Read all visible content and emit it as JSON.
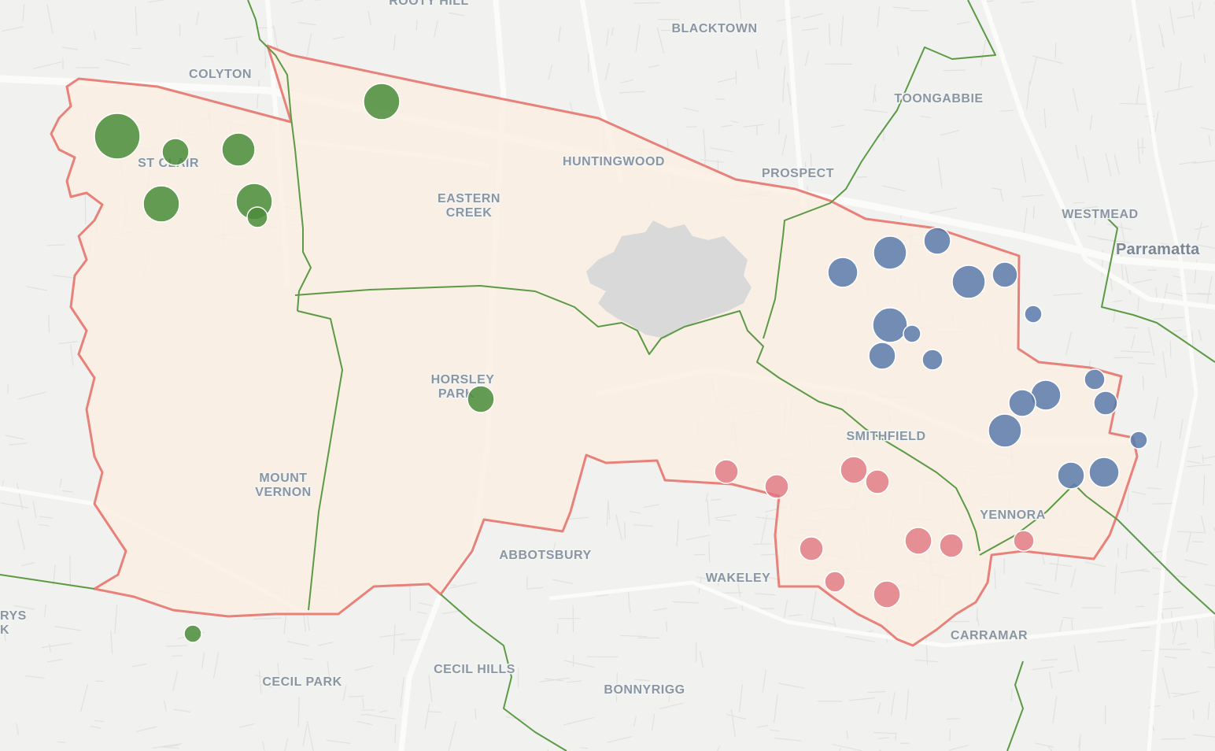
{
  "map": {
    "places": [
      {
        "name": "ROOTY HILL",
        "type": "suburb"
      },
      {
        "name": "BLACKTOWN",
        "type": "suburb"
      },
      {
        "name": "COLYTON",
        "type": "suburb"
      },
      {
        "name": "TOONGABBIE",
        "type": "suburb"
      },
      {
        "name": "ST CLAIR",
        "type": "suburb"
      },
      {
        "name": "HUNTINGWOOD",
        "type": "suburb"
      },
      {
        "name": "PROSPECT",
        "type": "suburb"
      },
      {
        "name": "EASTERN",
        "type": "suburb"
      },
      {
        "name": "CREEK",
        "type": "suburb"
      },
      {
        "name": "WESTMEAD",
        "type": "suburb"
      },
      {
        "name": "Parramatta",
        "type": "city"
      },
      {
        "name": "HORSLEY",
        "type": "suburb"
      },
      {
        "name": "PARK",
        "type": "suburb"
      },
      {
        "name": "SMITHFIELD",
        "type": "suburb"
      },
      {
        "name": "MOUNT",
        "type": "suburb"
      },
      {
        "name": "VERNON",
        "type": "suburb"
      },
      {
        "name": "YENNORA",
        "type": "suburb"
      },
      {
        "name": "ABBOTSBURY",
        "type": "suburb"
      },
      {
        "name": "WAKELEY",
        "type": "suburb"
      },
      {
        "name": "RYS",
        "type": "suburb"
      },
      {
        "name": "K",
        "type": "suburb"
      },
      {
        "name": "CARRAMAR",
        "type": "suburb"
      },
      {
        "name": "CECIL PARK",
        "type": "suburb"
      },
      {
        "name": "CECIL HILLS",
        "type": "suburb"
      },
      {
        "name": "BONNYRIGG",
        "type": "suburb"
      }
    ],
    "colors": {
      "electorate_fill": "#fbeee2",
      "electorate_border": "#e8817a",
      "booth_boundary": "#5c9a45",
      "reservoir": "#d9d9d9",
      "green_series": "#4a8c3a",
      "blue_series": "#5a7aab",
      "red_series": "#e07580"
    }
  }
}
